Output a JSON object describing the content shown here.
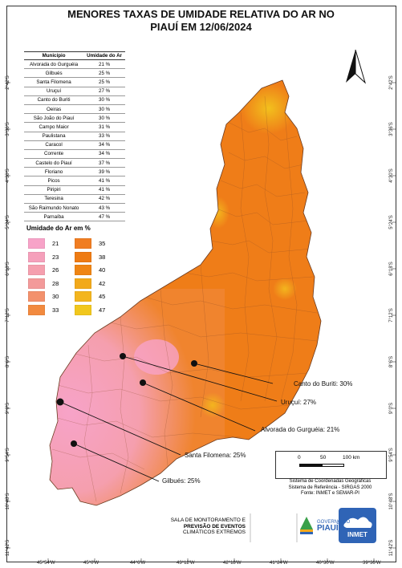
{
  "title_line1": "MENORES TAXAS DE UMIDADE RELATIVA DO AR NO",
  "title_line2": "PIAUÍ EM 12/06/2024",
  "table": {
    "header_city": "Município",
    "header_value": "Umidade do Ar",
    "rows": [
      [
        "Alvorada do Gurguéia",
        "21 %"
      ],
      [
        "Gilbués",
        "25 %"
      ],
      [
        "Santa Filomena",
        "25 %"
      ],
      [
        "Uruçuí",
        "27 %"
      ],
      [
        "Canto do Buriti",
        "30 %"
      ],
      [
        "Oeiras",
        "30 %"
      ],
      [
        "São João do Piauí",
        "30 %"
      ],
      [
        "Campo Maior",
        "31 %"
      ],
      [
        "Paulistana",
        "33 %"
      ],
      [
        "Caracol",
        "34 %"
      ],
      [
        "Corrente",
        "34 %"
      ],
      [
        "Castelo do Piauí",
        "37 %"
      ],
      [
        "Floriano",
        "39 %"
      ],
      [
        "Picos",
        "41 %"
      ],
      [
        "Piripiri",
        "41 %"
      ],
      [
        "Teresina",
        "42 %"
      ],
      [
        "São Raimundo Nonato",
        "43 %"
      ],
      [
        "Parnaíba",
        "47 %"
      ]
    ]
  },
  "legend": {
    "title": "Umidade do Ar em %",
    "items": [
      {
        "label": "21",
        "color": "#f7a3c8"
      },
      {
        "label": "23",
        "color": "#f5a0bb"
      },
      {
        "label": "26",
        "color": "#f59fae"
      },
      {
        "label": "28",
        "color": "#f39a9a"
      },
      {
        "label": "30",
        "color": "#f3916c"
      },
      {
        "label": "33",
        "color": "#f28a3f"
      },
      {
        "label": "35",
        "color": "#f07d22"
      },
      {
        "label": "38",
        "color": "#ee7b13"
      },
      {
        "label": "40",
        "color": "#ef8514"
      },
      {
        "label": "42",
        "color": "#f2a91b"
      },
      {
        "label": "45",
        "color": "#f3b51e"
      },
      {
        "label": "47",
        "color": "#f1c71d"
      }
    ]
  },
  "city_labels": [
    {
      "id": "canto",
      "text": "Canto do Buriti: 30%"
    },
    {
      "id": "urucui",
      "text": "Uruçuí: 27%"
    },
    {
      "id": "alvorada",
      "text": "Alvorada do Gurguéia: 21%"
    },
    {
      "id": "santa",
      "text": "Santa Filomena: 25%"
    },
    {
      "id": "gilbues",
      "text": "Gilbués: 25%"
    }
  ],
  "scale": {
    "t0": "0",
    "t1": "50",
    "t2": "100 km"
  },
  "scale_info": {
    "line1": "Sistema de Coordenadas Geográficas",
    "line2": "Sistema de Referência - SIRGAS 2000",
    "line3": "Fonte: INMET e SEMAR-PI"
  },
  "lat_labels": [
    "2°42'S",
    "3°36'S",
    "4°30'S",
    "5°24'S",
    "6°18'S",
    "7°12'S",
    "8°6'S",
    "9°0'S",
    "9°54'S",
    "10°48'S",
    "11°42'S"
  ],
  "lon_labels": [
    "45°54'W",
    "45°0'W",
    "44°6'W",
    "43°12'W",
    "42°18'W",
    "41°24'W",
    "40°30'W",
    "39°36'W"
  ],
  "footer": {
    "sala_line1": "SALA DE MONITORAMENTO E",
    "sala_line2": "PREVISÃO DE EVENTOS",
    "sala_line3": "CLIMÁTICOS EXTREMOS",
    "gov_line1": "GOVERNO DO",
    "gov_line2": "PIAUÍ",
    "inmet": "INMET"
  },
  "north_label": "north-arrow-icon"
}
